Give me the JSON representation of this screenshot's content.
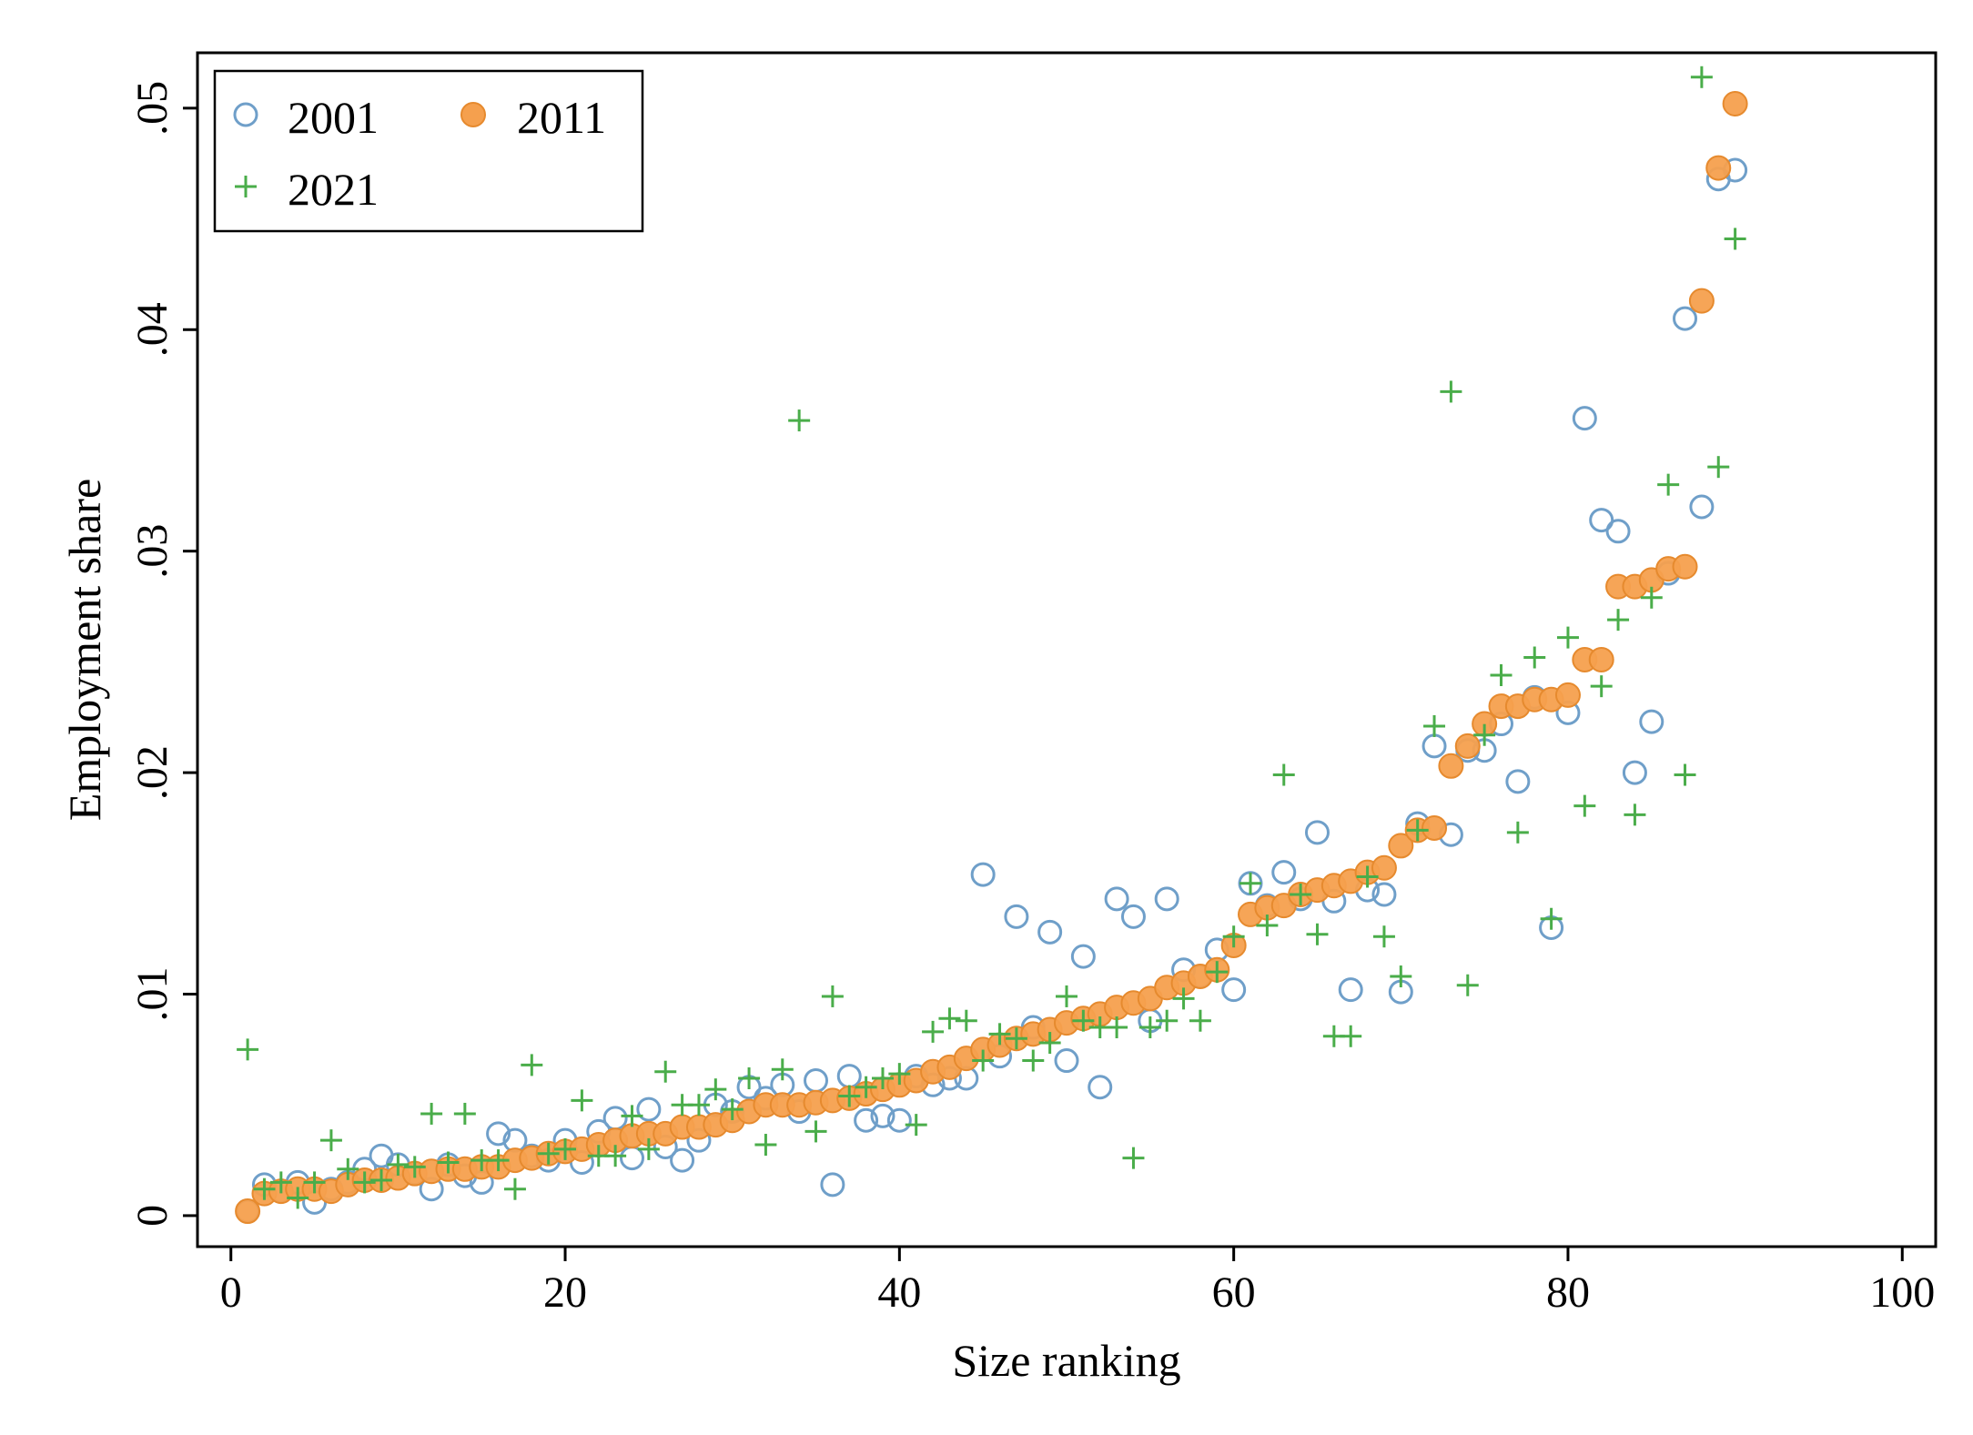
{
  "chart_data": {
    "type": "scatter",
    "title": "",
    "xlabel": "Size ranking",
    "ylabel": "Employment share",
    "xlim": [
      -2,
      102
    ],
    "ylim": [
      -0.0014,
      0.0525
    ],
    "xticks": [
      0,
      20,
      40,
      60,
      80,
      100
    ],
    "xtick_labels": [
      "0",
      "20",
      "40",
      "60",
      "80",
      "100"
    ],
    "yticks": [
      0,
      0.01,
      0.02,
      0.03,
      0.04,
      0.05
    ],
    "ytick_labels": [
      "0",
      ".01",
      ".02",
      ".03",
      ".04",
      ".05"
    ],
    "grid": false,
    "legend_position": "top-left",
    "x": [
      1,
      2,
      3,
      4,
      5,
      6,
      7,
      8,
      9,
      10,
      11,
      12,
      13,
      14,
      15,
      16,
      17,
      18,
      19,
      20,
      21,
      22,
      23,
      24,
      25,
      26,
      27,
      28,
      29,
      30,
      31,
      32,
      33,
      34,
      35,
      36,
      37,
      38,
      39,
      40,
      41,
      42,
      43,
      44,
      45,
      46,
      47,
      48,
      49,
      50,
      51,
      52,
      53,
      54,
      55,
      56,
      57,
      58,
      59,
      60,
      61,
      62,
      63,
      64,
      65,
      66,
      67,
      68,
      69,
      70,
      71,
      72,
      73,
      74,
      75,
      76,
      77,
      78,
      79,
      80,
      81,
      82,
      83,
      84,
      85,
      86,
      87,
      88,
      89,
      90
    ],
    "series": [
      {
        "name": "2001",
        "marker": "hollow-circle",
        "color": "#6f9fc9",
        "values": [
          0.0002,
          0.0014,
          0.0011,
          0.0015,
          0.0006,
          0.0012,
          0.0015,
          0.0021,
          0.0027,
          0.0023,
          0.0019,
          0.0012,
          0.0023,
          0.0018,
          0.0015,
          0.0037,
          0.0034,
          0.0027,
          0.0025,
          0.0034,
          0.0024,
          0.0038,
          0.0044,
          0.0026,
          0.0048,
          0.0031,
          0.0025,
          0.0034,
          0.005,
          0.0047,
          0.0058,
          0.0053,
          0.0059,
          0.0047,
          0.0061,
          0.0014,
          0.0063,
          0.0043,
          0.0045,
          0.0043,
          0.0063,
          0.0059,
          0.0062,
          0.0062,
          0.0154,
          0.0072,
          0.0135,
          0.0085,
          0.0128,
          0.007,
          0.0117,
          0.0058,
          0.0143,
          0.0135,
          0.0088,
          0.0143,
          0.0111,
          0.0108,
          0.012,
          0.0102,
          0.015,
          0.014,
          0.0155,
          0.0143,
          0.0173,
          0.0142,
          0.0102,
          0.0147,
          0.0145,
          0.0101,
          0.0177,
          0.0212,
          0.0172,
          0.021,
          0.021,
          0.0222,
          0.0196,
          0.0234,
          0.013,
          0.0227,
          0.036,
          0.0314,
          0.0309,
          0.02,
          0.0223,
          0.029,
          0.0405,
          0.032,
          0.0468,
          0.0472
        ]
      },
      {
        "name": "2011",
        "marker": "filled-circle",
        "color": "#f5a04e",
        "values": [
          0.0002,
          0.001,
          0.0011,
          0.0012,
          0.0012,
          0.0011,
          0.0014,
          0.0016,
          0.0016,
          0.0017,
          0.0019,
          0.002,
          0.0021,
          0.0021,
          0.0022,
          0.0022,
          0.0025,
          0.0026,
          0.0028,
          0.0029,
          0.003,
          0.0032,
          0.0034,
          0.0036,
          0.0037,
          0.0037,
          0.004,
          0.004,
          0.0041,
          0.0043,
          0.0047,
          0.005,
          0.005,
          0.005,
          0.0051,
          0.0052,
          0.0053,
          0.0055,
          0.0057,
          0.0059,
          0.0061,
          0.0065,
          0.0067,
          0.0071,
          0.0075,
          0.0077,
          0.008,
          0.0082,
          0.0084,
          0.0087,
          0.0089,
          0.0091,
          0.0094,
          0.0096,
          0.0098,
          0.0103,
          0.0105,
          0.0108,
          0.0111,
          0.0122,
          0.0136,
          0.0139,
          0.014,
          0.0145,
          0.0147,
          0.0149,
          0.0151,
          0.0155,
          0.0157,
          0.0167,
          0.0174,
          0.0175,
          0.0203,
          0.0212,
          0.0222,
          0.023,
          0.023,
          0.0233,
          0.0233,
          0.0235,
          0.0251,
          0.0251,
          0.0284,
          0.0284,
          0.0287,
          0.0292,
          0.0293,
          0.0413,
          0.0473,
          0.0502
        ]
      },
      {
        "name": "2021",
        "marker": "plus",
        "color": "#4aad4a",
        "values": [
          0.0075,
          0.0012,
          0.0015,
          0.0008,
          0.0015,
          0.0034,
          0.0021,
          0.0015,
          0.0016,
          0.0023,
          0.0022,
          0.0046,
          0.0024,
          0.0046,
          0.0025,
          0.0025,
          0.0012,
          0.0068,
          0.0028,
          0.003,
          0.0052,
          0.0027,
          0.0027,
          0.0045,
          0.003,
          0.0065,
          0.005,
          0.005,
          0.0057,
          0.0048,
          0.0062,
          0.0032,
          0.0066,
          0.0359,
          0.0038,
          0.0099,
          0.0054,
          0.0058,
          0.0062,
          0.0064,
          0.0041,
          0.0083,
          0.0089,
          0.0088,
          0.007,
          0.0082,
          0.008,
          0.007,
          0.0078,
          0.0099,
          0.0088,
          0.0085,
          0.0085,
          0.0026,
          0.0085,
          0.0088,
          0.0098,
          0.0088,
          0.011,
          0.0126,
          0.015,
          0.0131,
          0.0199,
          0.0145,
          0.0127,
          0.0081,
          0.0081,
          0.0153,
          0.0126,
          0.0108,
          0.0174,
          0.0221,
          0.0372,
          0.0104,
          0.0217,
          0.0244,
          0.0173,
          0.0252,
          0.0134,
          0.0261,
          0.0185,
          0.0239,
          0.0269,
          0.0181,
          0.0279,
          0.033,
          0.0199,
          0.0514,
          0.0338,
          0.0441
        ]
      }
    ]
  }
}
